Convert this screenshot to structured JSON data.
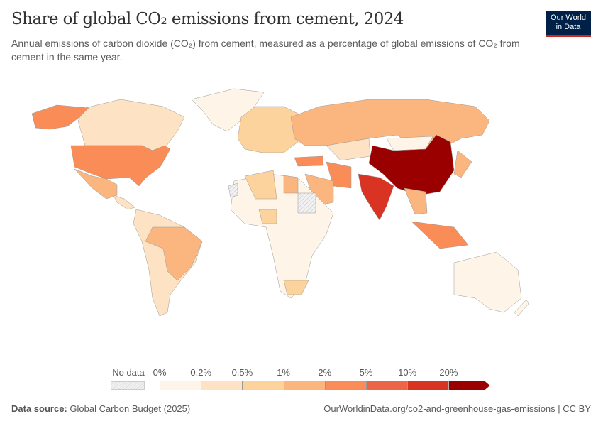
{
  "header": {
    "title": "Share of global CO₂ emissions from cement, 2024",
    "subtitle": "Annual emissions of carbon dioxide (CO₂) from cement, measured as a percentage of global emissions of CO₂ from cement in the same year.",
    "logo_line1": "Our World",
    "logo_line2": "in Data"
  },
  "legend": {
    "no_data_label": "No data",
    "no_data_color": "#e8e8e8",
    "bin_labels": [
      "0%",
      "0.2%",
      "0.5%",
      "1%",
      "2%",
      "5%",
      "10%",
      "20%"
    ],
    "bin_colors": [
      "#fef4e8",
      "#fde3c3",
      "#fcd29d",
      "#fbb67f",
      "#fa8c58",
      "#ec6547",
      "#d93324",
      "#9a0000"
    ]
  },
  "footer": {
    "source_label": "Data source:",
    "source_value": "Global Carbon Budget (2025)",
    "url": "OurWorldinData.org/co2-and-greenhouse-gas-emissions | CC BY"
  }
}
